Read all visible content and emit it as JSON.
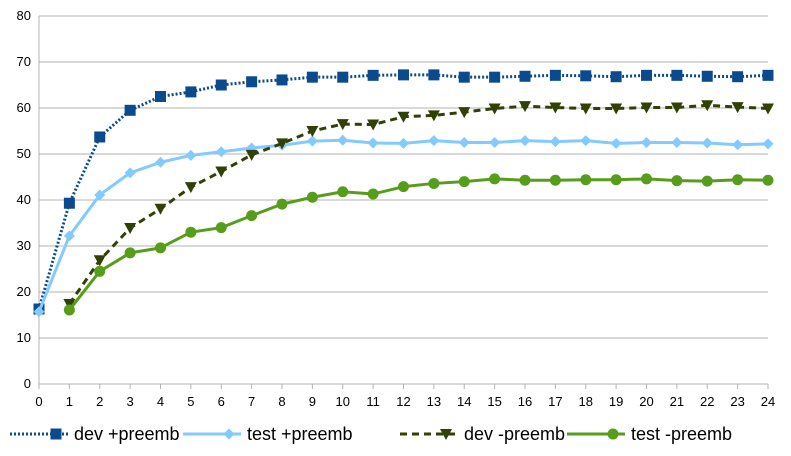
{
  "chart_data": {
    "type": "line",
    "title": "",
    "xlabel": "",
    "ylabel": "",
    "x": [
      0,
      1,
      2,
      3,
      4,
      5,
      6,
      7,
      8,
      9,
      10,
      11,
      12,
      13,
      14,
      15,
      16,
      17,
      18,
      19,
      20,
      21,
      22,
      23,
      24
    ],
    "ylim": [
      0,
      80
    ],
    "yticks": [
      0,
      10,
      20,
      30,
      40,
      50,
      60,
      70,
      80
    ],
    "grid": "horizontal",
    "legend_position": "bottom",
    "series": [
      {
        "name": "dev +preemb",
        "color": "#0b4a8c",
        "line": "dotted",
        "marker": "square",
        "x": [
          0,
          1,
          2,
          3,
          4,
          5,
          6,
          7,
          8,
          9,
          10,
          11,
          12,
          13,
          14,
          15,
          16,
          17,
          18,
          19,
          20,
          21,
          22,
          23,
          24
        ],
        "values": [
          16.3,
          39.3,
          53.7,
          59.5,
          62.5,
          63.5,
          65.0,
          65.7,
          66.1,
          66.7,
          66.7,
          67.1,
          67.2,
          67.2,
          66.7,
          66.7,
          66.9,
          67.1,
          67.0,
          66.8,
          67.1,
          67.1,
          66.9,
          66.8,
          67.1
        ]
      },
      {
        "name": "test +preemb",
        "color": "#83caff",
        "line": "solid",
        "marker": "diamond",
        "x": [
          0,
          1,
          2,
          3,
          4,
          5,
          6,
          7,
          8,
          9,
          10,
          11,
          12,
          13,
          14,
          15,
          16,
          17,
          18,
          19,
          20,
          21,
          22,
          23,
          24
        ],
        "values": [
          15.7,
          32.2,
          41.1,
          45.9,
          48.2,
          49.7,
          50.5,
          51.3,
          51.9,
          52.8,
          53.0,
          52.4,
          52.3,
          52.9,
          52.5,
          52.5,
          52.9,
          52.7,
          52.9,
          52.3,
          52.5,
          52.5,
          52.4,
          52.0,
          52.2
        ]
      },
      {
        "name": "dev -preemb",
        "color": "#314004",
        "line": "dashed",
        "marker": "triangle-down",
        "x": [
          1,
          2,
          3,
          4,
          5,
          6,
          7,
          8,
          9,
          10,
          11,
          12,
          13,
          14,
          15,
          16,
          17,
          18,
          19,
          20,
          21,
          22,
          23,
          24
        ],
        "values": [
          17.4,
          26.9,
          33.9,
          38.1,
          42.8,
          46.2,
          49.8,
          52.3,
          55.0,
          56.5,
          56.4,
          58.1,
          58.4,
          59.1,
          59.9,
          60.4,
          60.1,
          59.9,
          59.9,
          60.1,
          60.1,
          60.6,
          60.2,
          59.9
        ]
      },
      {
        "name": "test -preemb",
        "color": "#579d1c",
        "line": "solid",
        "marker": "circle",
        "x": [
          1,
          2,
          3,
          4,
          5,
          6,
          7,
          8,
          9,
          10,
          11,
          12,
          13,
          14,
          15,
          16,
          17,
          18,
          19,
          20,
          21,
          22,
          23,
          24
        ],
        "values": [
          16.1,
          24.5,
          28.5,
          29.6,
          33.0,
          34.0,
          36.6,
          39.1,
          40.6,
          41.8,
          41.3,
          42.9,
          43.6,
          44.0,
          44.6,
          44.3,
          44.3,
          44.4,
          44.4,
          44.6,
          44.2,
          44.1,
          44.4,
          44.3
        ]
      }
    ]
  }
}
